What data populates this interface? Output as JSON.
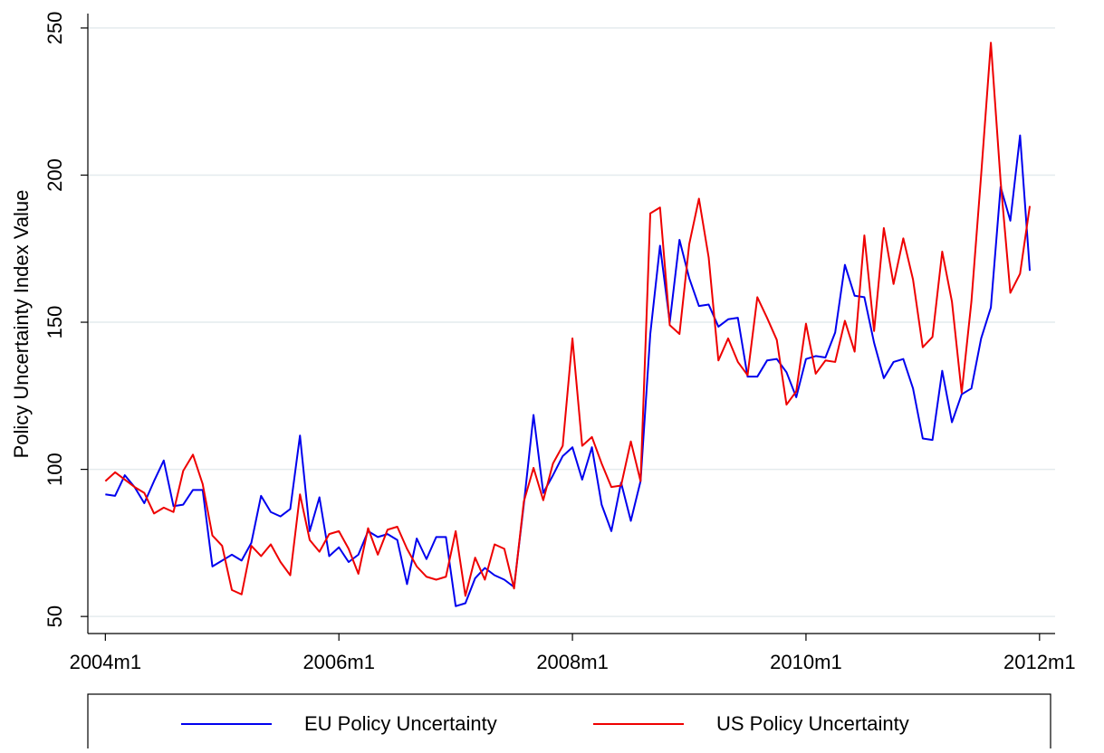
{
  "chart_data": {
    "type": "line",
    "y_axis_label": "Policy Uncertainty Index Value",
    "x": [
      528,
      529,
      530,
      531,
      532,
      533,
      534,
      535,
      536,
      537,
      538,
      539,
      540,
      541,
      542,
      543,
      544,
      545,
      546,
      547,
      548,
      549,
      550,
      551,
      552,
      553,
      554,
      555,
      556,
      557,
      558,
      559,
      560,
      561,
      562,
      563,
      564,
      565,
      566,
      567,
      568,
      569,
      570,
      571,
      572,
      573,
      574,
      575,
      576,
      577,
      578,
      579,
      580,
      581,
      582,
      583,
      584,
      585,
      586,
      587,
      588,
      589,
      590,
      591,
      592,
      593,
      594,
      595,
      596,
      597,
      598,
      599,
      600,
      601,
      602,
      603,
      604,
      605,
      606,
      607,
      608,
      609,
      610,
      611,
      612,
      613,
      614,
      615,
      616,
      617,
      618,
      619,
      620,
      621,
      622,
      623
    ],
    "series": [
      {
        "name": "EU Policy Uncertainty",
        "color": "#0000ee",
        "values": [
          91.5,
          91,
          98,
          94,
          88.5,
          96,
          103,
          87.5,
          88,
          93,
          93,
          67,
          69,
          71,
          69,
          75,
          91,
          85.5,
          84,
          86.5,
          111.5,
          79,
          90.5,
          70.5,
          73.5,
          68.5,
          71,
          79,
          77,
          78,
          76,
          61,
          76.5,
          69.5,
          77,
          77,
          53.5,
          54.5,
          63,
          66.5,
          64,
          62.5,
          60,
          88,
          118.5,
          92,
          98,
          104.5,
          107.5,
          96.5,
          107.5,
          88,
          79,
          95.5,
          82.5,
          96,
          146,
          176,
          150,
          178,
          165,
          155.5,
          156,
          148.5,
          151,
          151.5,
          131.5,
          131.5,
          137,
          137.5,
          133,
          124.5,
          137.5,
          138.5,
          138,
          146.5,
          169.5,
          159,
          158.5,
          143,
          131,
          136.5,
          137.5,
          127.5,
          110.5,
          110,
          133.5,
          116,
          125.5,
          127.5,
          144.5,
          155,
          196,
          184.5,
          213.5,
          167.5
        ]
      },
      {
        "name": "US Policy Uncertainty",
        "color": "#ee0000",
        "values": [
          96,
          99,
          96.5,
          94,
          92,
          85,
          87,
          85.5,
          99.5,
          105,
          95,
          77.5,
          74,
          59,
          57.5,
          74,
          70.5,
          74.5,
          68.5,
          64,
          91.5,
          76,
          72,
          78,
          79,
          73,
          64.5,
          80,
          71,
          79.5,
          80.5,
          73,
          67,
          63.5,
          62.5,
          63.5,
          79,
          57,
          70,
          62.5,
          74.5,
          73,
          59.5,
          89,
          100.5,
          89.5,
          102,
          108,
          144.5,
          108,
          111,
          102,
          94,
          94.5,
          109.5,
          96,
          187,
          189,
          149,
          146,
          176.5,
          192,
          172,
          137,
          144.5,
          136.5,
          132,
          158.5,
          151.5,
          144,
          122,
          126.5,
          149.5,
          132.5,
          137,
          136.5,
          150.5,
          140,
          179.5,
          147,
          182,
          163,
          178.5,
          164.5,
          141.5,
          145,
          174,
          157,
          126,
          157,
          200,
          245,
          198,
          160,
          166.5,
          189.5
        ]
      }
    ],
    "xlim": [
      526.2,
      625.6
    ],
    "xticks": [
      {
        "value": 528,
        "label": "2004m1"
      },
      {
        "value": 552,
        "label": "2006m1"
      },
      {
        "value": 576,
        "label": "2008m1"
      },
      {
        "value": 600,
        "label": "2010m1"
      },
      {
        "value": 624,
        "label": "2012m1"
      }
    ],
    "ylim": [
      44.2,
      254.9
    ],
    "yticks": [
      50,
      100,
      150,
      200,
      250
    ],
    "grid": true,
    "legend": "bottom"
  }
}
